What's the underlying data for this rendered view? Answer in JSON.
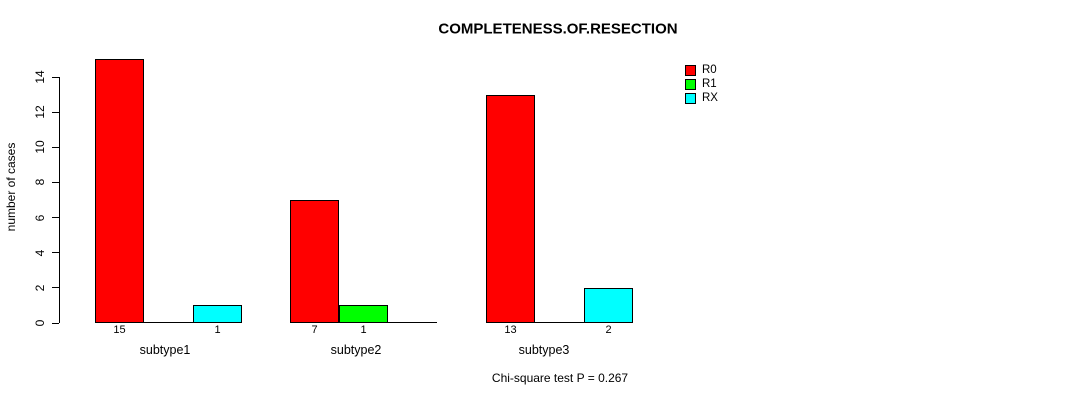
{
  "chart_data": {
    "type": "bar",
    "title": "COMPLETENESS.OF.RESECTION",
    "xlabel": "",
    "ylabel": "number of cases",
    "categories": [
      "subtype1",
      "subtype2",
      "subtype3"
    ],
    "series": [
      {
        "name": "R0",
        "color": "#ff0000",
        "values": [
          15,
          7,
          13
        ]
      },
      {
        "name": "R1",
        "color": "#00ff00",
        "values": [
          0,
          1,
          0
        ]
      },
      {
        "name": "RX",
        "color": "#00ffff",
        "values": [
          1,
          0,
          2
        ]
      }
    ],
    "bar_value_labels": {
      "subtype1": {
        "R0": "15",
        "RX": "1"
      },
      "subtype2": {
        "R0": "7",
        "R1": "1"
      },
      "subtype3": {
        "R0": "13",
        "RX": "2"
      }
    },
    "yticks": [
      0,
      2,
      4,
      6,
      8,
      10,
      12,
      14
    ],
    "ylim": [
      0,
      15
    ],
    "grid": false,
    "bar_outline_color": "#000000",
    "background_color": "#ffffff",
    "legend": {
      "position": "top-right",
      "entries": [
        "R0",
        "R1",
        "RX"
      ],
      "colors": [
        "#ff0000",
        "#00ff00",
        "#00ffff"
      ]
    },
    "annotation": "Chi-square test P = 0.267"
  }
}
